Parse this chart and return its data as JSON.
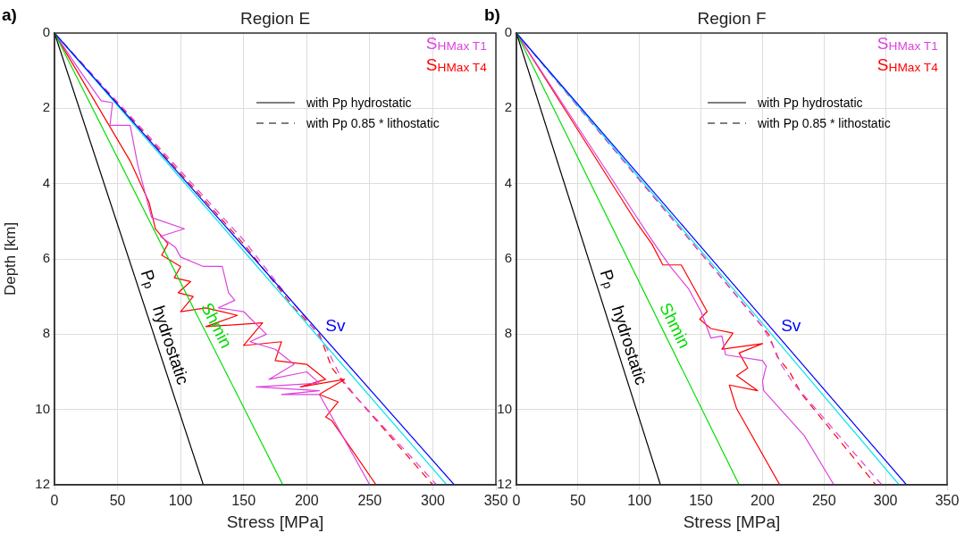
{
  "chart_data": [
    {
      "type": "line",
      "title": "Region E",
      "xlabel": "Stress [MPa]",
      "ylabel": "Depth [km]",
      "xlim": [
        0,
        350
      ],
      "xticks": [
        0,
        50,
        100,
        150,
        200,
        250,
        300,
        350
      ],
      "ylim": [
        12,
        0
      ],
      "yticks": [
        0,
        2,
        4,
        6,
        8,
        10,
        12
      ],
      "grid": true,
      "legend": "top right",
      "annotations": [
        "a)",
        "with Pp hydrostatic",
        "with Pp 0.85 * lithostatic"
      ],
      "series": [
        {
          "name": "P$_{p}$ hydrostatic",
          "color": "#000000",
          "line_style": "solid",
          "x": [
            0,
            118
          ],
          "values": [
            0,
            12
          ]
        },
        {
          "name": "Shmin",
          "color": "#00dd00",
          "line_style": "solid",
          "x": [
            0,
            181
          ],
          "values": [
            0,
            12
          ]
        },
        {
          "name": "Sv",
          "color": "#0000ff",
          "line_style": "solid",
          "x": [
            0,
            317
          ],
          "values": [
            0,
            12
          ]
        },
        {
          "color": "#00e5ee",
          "line_style": "solid",
          "x": [
            0,
            311
          ],
          "values": [
            0,
            12
          ]
        },
        {
          "name": "S$_{HMax T1}$",
          "color": "#dd44dd",
          "line_style": "solid",
          "x": [
            0,
            20,
            37,
            46,
            44,
            60,
            66,
            77,
            103,
            84,
            96,
            100,
            118,
            133,
            138,
            143,
            130,
            150,
            168,
            155,
            175,
            190,
            170,
            200,
            210,
            160,
            210,
            180,
            210,
            250
          ],
          "values": [
            0,
            1,
            1.8,
            1.85,
            2.45,
            2.45,
            3.5,
            4.9,
            5.2,
            5.4,
            5.7,
            5.95,
            6.2,
            6.2,
            6.9,
            7.1,
            7.3,
            7.4,
            8.0,
            8.2,
            8.4,
            8.8,
            9.2,
            9.0,
            9.3,
            9.4,
            9.5,
            9.6,
            9.6,
            12
          ]
        },
        {
          "name": "S$_{HMax T4}$",
          "color": "#ff0000",
          "line_style": "solid",
          "x": [
            0,
            60,
            75,
            80,
            90,
            85,
            100,
            95,
            108,
            98,
            110,
            100,
            120,
            145,
            120,
            165,
            150,
            180,
            175,
            200,
            215,
            195,
            230,
            210,
            225,
            215,
            220,
            255
          ],
          "values": [
            0,
            3.4,
            4.5,
            5.2,
            5.6,
            5.9,
            6.2,
            6.5,
            6.6,
            6.9,
            7.0,
            7.4,
            7.3,
            7.5,
            7.8,
            7.7,
            8.3,
            8.2,
            8.7,
            8.8,
            9.2,
            9.4,
            9.2,
            9.6,
            9.8,
            10.2,
            10.3,
            12
          ]
        },
        {
          "color": "#dd44dd",
          "line_style": "dashed",
          "x": [
            0,
            150,
            185,
            200,
            215,
            222,
            228,
            240,
            303
          ],
          "values": [
            0,
            5.5,
            7.0,
            7.6,
            8.3,
            8.8,
            9.2,
            9.7,
            12
          ]
        },
        {
          "color": "#ff0000",
          "line_style": "dashed",
          "x": [
            0,
            150,
            190,
            210,
            220,
            232,
            245,
            300
          ],
          "values": [
            0,
            5.6,
            7.3,
            8.0,
            8.9,
            9.4,
            9.9,
            12
          ]
        }
      ]
    },
    {
      "type": "line",
      "title": "Region F",
      "xlabel": "Stress [MPa]",
      "xlim": [
        0,
        350
      ],
      "xticks": [
        0,
        50,
        100,
        150,
        200,
        250,
        300,
        350
      ],
      "ylim": [
        12,
        0
      ],
      "yticks": [
        0,
        2,
        4,
        6,
        8,
        10,
        12
      ],
      "grid": true,
      "legend": "top right",
      "annotations": [
        "b)",
        "with Pp hydrostatic",
        "with Pp 0.85 * lithostatic"
      ],
      "series": [
        {
          "name": "P$_{p}$ hydrostatic",
          "color": "#000000",
          "line_style": "solid",
          "x": [
            0,
            117
          ],
          "values": [
            0,
            12
          ]
        },
        {
          "name": "Shmin",
          "color": "#00dd00",
          "line_style": "solid",
          "x": [
            0,
            181
          ],
          "values": [
            0,
            12
          ]
        },
        {
          "name": "Sv",
          "color": "#0000ff",
          "line_style": "solid",
          "x": [
            0,
            317
          ],
          "values": [
            0,
            12
          ]
        },
        {
          "color": "#00e5ee",
          "line_style": "solid",
          "x": [
            0,
            311
          ],
          "values": [
            0,
            12
          ]
        },
        {
          "name": "S$_{HMax T1}$",
          "color": "#dd44dd",
          "line_style": "solid",
          "x": [
            0,
            97,
            110,
            125,
            140,
            150,
            158,
            167,
            170,
            200,
            203,
            200,
            201,
            234,
            258
          ],
          "values": [
            0,
            4.85,
            5.5,
            6.2,
            6.8,
            7.4,
            8.1,
            8.05,
            8.55,
            8.7,
            8.85,
            9.25,
            9.5,
            10.7,
            12
          ]
        },
        {
          "name": "S$_{HMax T4}$",
          "color": "#ff0000",
          "line_style": "solid",
          "x": [
            0,
            94,
            98,
            110,
            119,
            134,
            155,
            149,
            158,
            176,
            167,
            200,
            181,
            188,
            179,
            196,
            173,
            179,
            214
          ],
          "values": [
            0,
            4.85,
            5.05,
            5.6,
            6.16,
            6.16,
            7.4,
            7.6,
            7.85,
            7.97,
            8.4,
            8.25,
            8.5,
            8.9,
            9.1,
            9.5,
            9.35,
            9.98,
            12
          ]
        },
        {
          "color": "#dd44dd",
          "line_style": "dashed",
          "x": [
            0,
            200,
            210,
            215,
            225,
            297
          ],
          "values": [
            0,
            7.8,
            8.4,
            8.8,
            9.3,
            12
          ]
        },
        {
          "color": "#ff0000",
          "line_style": "dashed",
          "x": [
            0,
            205,
            212,
            222,
            232,
            292
          ],
          "values": [
            0,
            8.0,
            8.6,
            9.0,
            9.6,
            12
          ]
        }
      ]
    }
  ]
}
